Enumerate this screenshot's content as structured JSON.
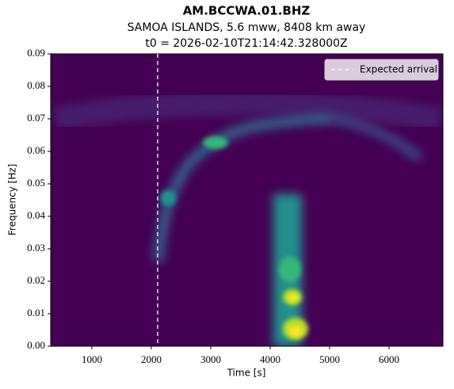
{
  "chart_data": {
    "type": "spectrogram",
    "title": "AM.BCCWA.01.BHZ",
    "subtitle": [
      "SAMOA ISLANDS, 5.6 mww, 8408 km away",
      "t0 = 2026-02-10T21:14:42.328000Z"
    ],
    "x_label": "Time [s]",
    "y_label": "Frequency [Hz]",
    "xlim": [
      307,
      6907
    ],
    "xticks": [
      1000,
      2000,
      3000,
      4000,
      5000,
      6000
    ],
    "ylim": [
      0,
      0.09
    ],
    "yticks": [
      {
        "value": 0,
        "label": "0.00"
      },
      {
        "value": 0.01,
        "label": "0.01"
      },
      {
        "value": 0.02,
        "label": "0.02"
      },
      {
        "value": 0.03,
        "label": "0.03"
      },
      {
        "value": 0.04,
        "label": "0.04"
      },
      {
        "value": 0.05,
        "label": "0.05"
      },
      {
        "value": 0.06,
        "label": "0.06"
      },
      {
        "value": 0.07,
        "label": "0.07"
      },
      {
        "value": 0.08,
        "label": "0.08"
      },
      {
        "value": 0.09,
        "label": "0.09"
      }
    ],
    "vlines": [
      {
        "name": "Expected arrival",
        "x": 2107,
        "color": "#ffffff"
      }
    ],
    "legend": "upper right"
  }
}
